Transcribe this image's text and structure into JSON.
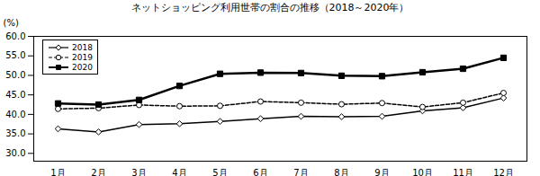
{
  "chart_data": {
    "type": "line",
    "title": "ネットショッピング利用世帯の割合の推移（2018～2020年）",
    "y_label": "(%)",
    "categories": [
      "1月",
      "2月",
      "3月",
      "4月",
      "5月",
      "6月",
      "7月",
      "8月",
      "9月",
      "10月",
      "11月",
      "12月"
    ],
    "series": [
      {
        "name": "2018",
        "color": "#000000",
        "marker": "open_diamond",
        "line_style": "solid",
        "values": [
          36.3,
          35.5,
          37.4,
          37.6,
          38.2,
          38.9,
          39.5,
          39.4,
          39.5,
          40.9,
          41.7,
          44.2
        ]
      },
      {
        "name": "2019",
        "color": "#000000",
        "marker": "open_circle",
        "line_style": "dashed",
        "values": [
          41.4,
          41.6,
          42.4,
          42.1,
          42.2,
          43.3,
          43.0,
          42.6,
          42.9,
          41.9,
          43.0,
          45.5
        ]
      },
      {
        "name": "2020",
        "color": "#000000",
        "marker": "square",
        "line_style": "solid",
        "values": [
          42.8,
          42.5,
          43.7,
          47.3,
          50.4,
          50.7,
          50.6,
          49.9,
          49.8,
          50.8,
          51.7,
          54.5
        ]
      }
    ],
    "ylim": [
      28,
      60
    ],
    "yticks": [
      {
        "value": 30,
        "label": "30.0"
      },
      {
        "value": 35,
        "label": "35.0"
      },
      {
        "value": 40,
        "label": "40.0"
      },
      {
        "value": 45,
        "label": "45.0"
      },
      {
        "value": 50,
        "label": "50.0"
      },
      {
        "value": 55,
        "label": "55.0"
      },
      {
        "value": 60,
        "label": "60.0"
      }
    ],
    "grid": false,
    "legend": "top-left"
  }
}
